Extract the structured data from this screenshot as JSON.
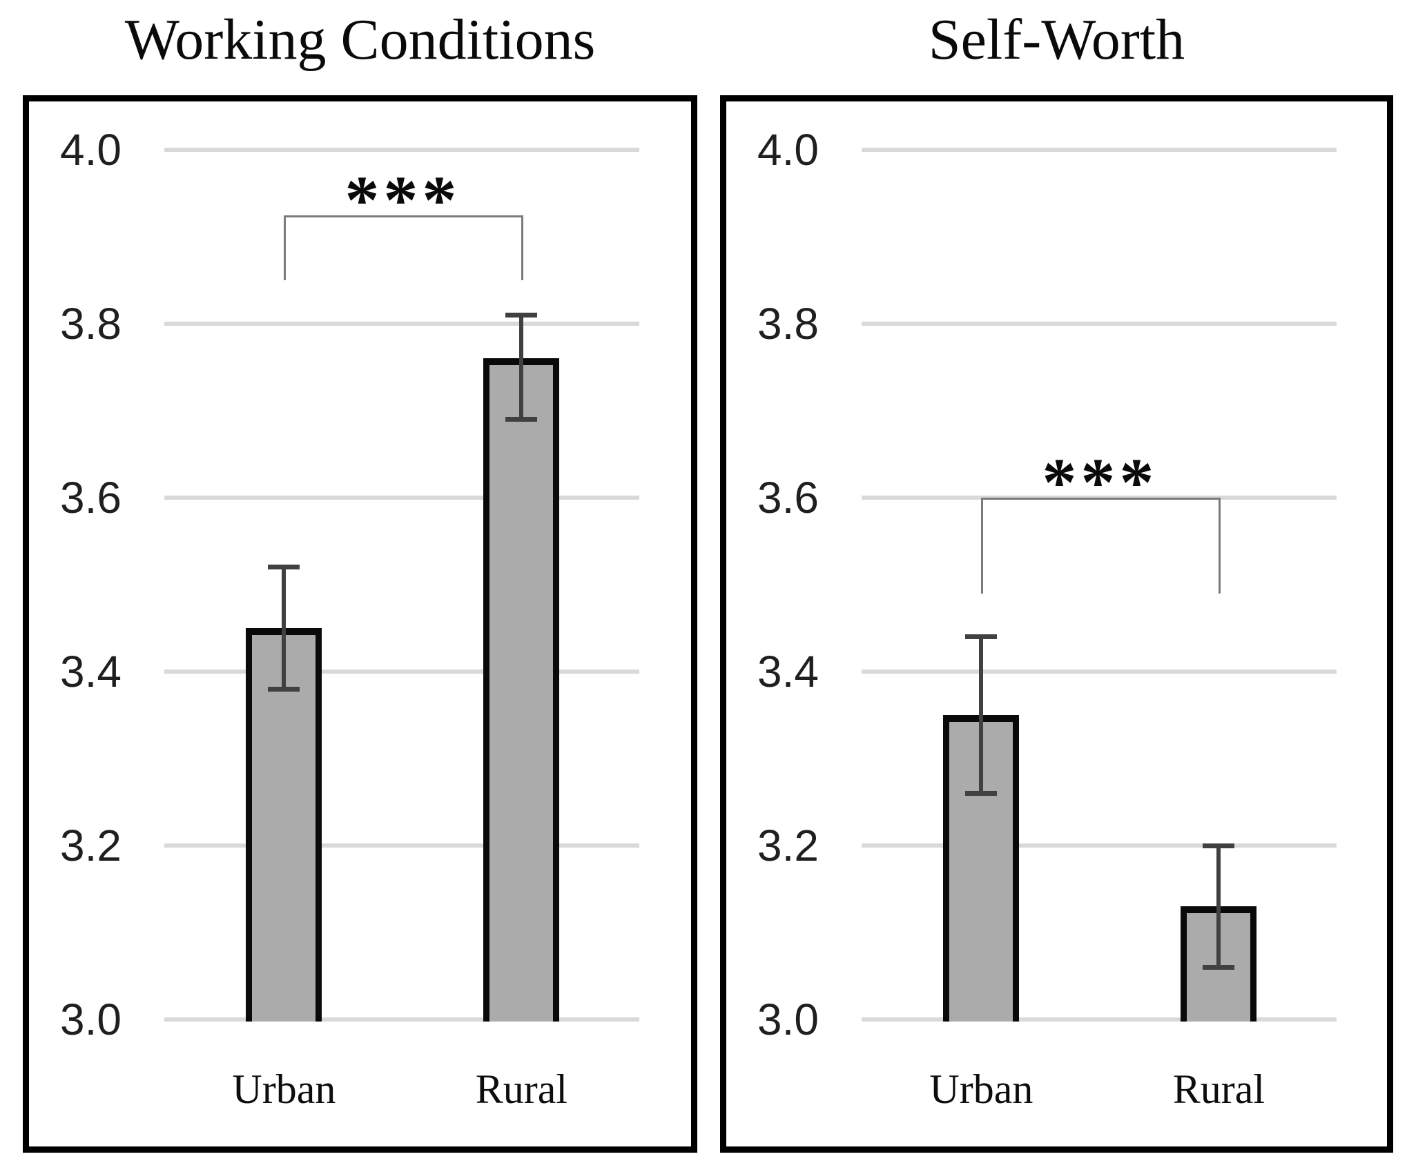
{
  "figure": {
    "background": "#ffffff",
    "panel_count": 2
  },
  "colors": {
    "bar_fill": "#ababab",
    "bar_border": "#0a0a0a",
    "gridline": "#d9d9d9",
    "error_bar": "#404040",
    "bracket": "#7a7a7a",
    "panel_border": "#000000",
    "title_text": "#0a0a0a",
    "tick_text": "#1f1f1f"
  },
  "chart_data": [
    {
      "type": "bar",
      "title": "Working Conditions",
      "categories": [
        "Urban",
        "Rural"
      ],
      "values": [
        3.45,
        3.76
      ],
      "error_low": [
        3.38,
        3.69
      ],
      "error_high": [
        3.52,
        3.81
      ],
      "significance": {
        "label": "***",
        "bracket_top": 3.925,
        "leg_bottom": 3.85,
        "label_y": 3.955
      },
      "ylim": [
        3.0,
        4.0
      ],
      "yticks": [
        "4.0",
        "3.8",
        "3.6",
        "3.4",
        "3.2",
        "3.0"
      ],
      "grid": true,
      "legend": false
    },
    {
      "type": "bar",
      "title": "Self-Worth",
      "categories": [
        "Urban",
        "Rural"
      ],
      "values": [
        3.35,
        3.13
      ],
      "error_low": [
        3.26,
        3.06
      ],
      "error_high": [
        3.44,
        3.2
      ],
      "significance": {
        "label": "***",
        "bracket_top": 3.6,
        "leg_bottom": 3.49,
        "label_y": 3.63
      },
      "ylim": [
        3.0,
        4.0
      ],
      "yticks": [
        "4.0",
        "3.8",
        "3.6",
        "3.4",
        "3.2",
        "3.0"
      ],
      "grid": true,
      "legend": false
    }
  ]
}
